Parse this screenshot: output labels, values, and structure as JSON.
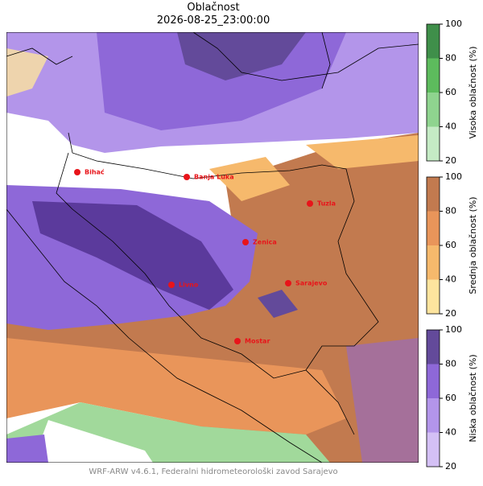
{
  "header": {
    "title": "Oblačnost",
    "subtitle": "2026-08-25_23:00:00"
  },
  "cities": [
    "Bihać",
    "Banja Luka",
    "Tuzla",
    "Zenica",
    "Livno",
    "Sarajevo",
    "Mostar"
  ],
  "colorbars": [
    {
      "label": "Visoka oblačnost (%)",
      "ticks": [
        20,
        40,
        60,
        80,
        100
      ],
      "colors": [
        "#c5ebc5",
        "#8fd48f",
        "#5dbb5d",
        "#3f8f4a"
      ]
    },
    {
      "label": "Srednja oblačnost (%)",
      "ticks": [
        20,
        40,
        60,
        80,
        100
      ],
      "colors": [
        "#fde49e",
        "#f6b96c",
        "#e9955a",
        "#c27a4f"
      ]
    },
    {
      "label": "Niska oblačnost (%)",
      "ticks": [
        20,
        40,
        60,
        80,
        100
      ],
      "colors": [
        "#d4c0f5",
        "#b395ea",
        "#8e68d8",
        "#634a9a"
      ]
    }
  ],
  "footer": "WRF-ARW v4.6.1, Federalni hidrometeorološki zavod Sarajevo"
}
